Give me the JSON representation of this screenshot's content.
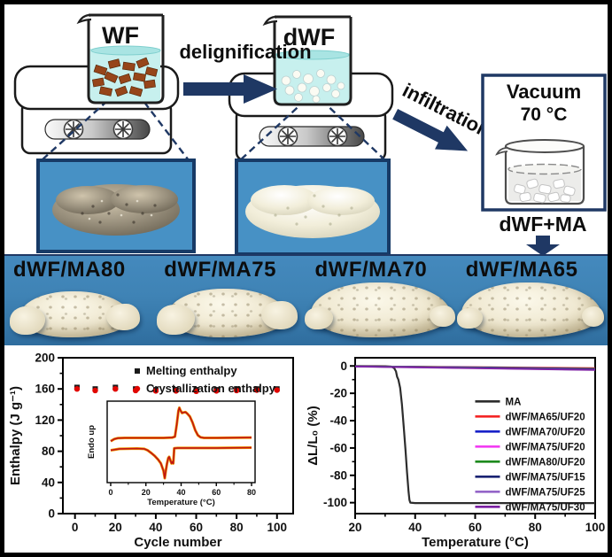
{
  "process": {
    "beaker1_label": "WF",
    "beaker2_label": "dWF",
    "step1_label": "delignification",
    "step2_label": "infiltration",
    "vacuum_line1": "Vacuum",
    "vacuum_line2": "70 °C",
    "mix_label": "dWF+MA"
  },
  "samples": [
    {
      "label": "dWF/MA80"
    },
    {
      "label": "dWF/MA75"
    },
    {
      "label": "dWF/MA70"
    },
    {
      "label": "dWF/MA65"
    }
  ],
  "colors": {
    "accent_navy": "#1f3864",
    "photo_blue": "#4791c5",
    "strip_blue": "#3f83b5",
    "melting_marker": "#1a1a1a",
    "crystallization_marker": "#e10600"
  },
  "chart_data": [
    {
      "type": "scatter",
      "title": "",
      "xlabel": "Cycle number",
      "ylabel": "Enthalpy (J g⁻¹)",
      "xlim": [
        -6,
        108
      ],
      "ylim": [
        0,
        200
      ],
      "xticks": [
        0,
        20,
        40,
        60,
        80,
        100
      ],
      "yticks": [
        0,
        40,
        80,
        120,
        160,
        200
      ],
      "xminor": [
        10,
        30,
        50,
        70,
        90
      ],
      "yminor": [
        20,
        60,
        100,
        140,
        180
      ],
      "legend": {
        "x": 0.3,
        "y": 0.085,
        "dy": 20,
        "swatch": "marker"
      },
      "series": [
        {
          "name": "Melting enthalpy",
          "color": "#1a1a1a",
          "marker": "square",
          "x": [
            1,
            10,
            20,
            30,
            40,
            50,
            60,
            70,
            80,
            90,
            100
          ],
          "y": [
            162,
            160,
            162,
            160,
            159,
            159,
            159,
            159,
            160,
            160,
            160
          ]
        },
        {
          "name": "Crystallization enthalpy",
          "color": "#e10600",
          "marker": "circle",
          "x": [
            1,
            10,
            20,
            30,
            40,
            50,
            60,
            70,
            80,
            90,
            100
          ],
          "y": [
            160,
            158,
            160,
            158,
            157.5,
            157.5,
            157,
            157.5,
            158,
            158.5,
            158.5
          ]
        }
      ],
      "inset": {
        "pos": {
          "x": 90,
          "y": 56,
          "w": 198,
          "h": 126
        },
        "xlabel": "Temperature (°C)",
        "ylabel": "Endo up",
        "xlim": [
          -2,
          82
        ],
        "ylim": [
          -1.45,
          1.3
        ],
        "xticks": [
          0,
          20,
          40,
          60,
          80
        ],
        "yticks": [],
        "xminor": [
          10,
          30,
          50,
          70
        ],
        "bg": "#ffffff",
        "series": [
          {
            "name": "heating-cycles-edge",
            "color": "#f09600",
            "width": 3,
            "nolegend": true,
            "x": [
              0,
              2,
              4,
              8,
              20,
              30,
              35,
              36.5,
              37.5,
              38.5,
              39,
              39.5,
              40.5,
              41.5,
              42.5,
              43.5,
              45,
              46.5,
              48,
              49.5,
              51,
              53,
              60,
              80
            ],
            "y": [
              -0.05,
              0.02,
              0.05,
              0.06,
              0.06,
              0.06,
              0.07,
              0.1,
              0.5,
              0.98,
              1.08,
              1.0,
              0.9,
              0.92,
              0.93,
              0.88,
              0.78,
              0.58,
              0.32,
              0.15,
              0.08,
              0.06,
              0.06,
              0.07
            ]
          },
          {
            "name": "cooling-cycles-edge",
            "color": "#f09600",
            "width": 3,
            "nolegend": true,
            "x": [
              0,
              5,
              15,
              19,
              21,
              23,
              25,
              27,
              28.5,
              30,
              30.7,
              31.3,
              32,
              32.7,
              33.2,
              33.8,
              34.5,
              35,
              35.5,
              35.9,
              36.1,
              38,
              45,
              60,
              80
            ],
            "y": [
              -0.36,
              -0.31,
              -0.3,
              -0.31,
              -0.36,
              -0.45,
              -0.55,
              -0.68,
              -0.8,
              -1.05,
              -1.3,
              -1.05,
              -0.8,
              -0.62,
              -0.58,
              -0.68,
              -0.8,
              -0.75,
              -0.8,
              -0.5,
              -0.29,
              -0.28,
              -0.28,
              -0.28,
              -0.27
            ]
          },
          {
            "name": "heating-cycle",
            "color": "#c01414",
            "width": 1.6,
            "nolegend": true,
            "x": [
              0,
              2,
              4,
              8,
              20,
              30,
              35,
              36.5,
              37.5,
              38.5,
              39,
              39.5,
              40.5,
              41.5,
              42.5,
              43.5,
              45,
              46.5,
              48,
              49.5,
              51,
              53,
              60,
              80
            ],
            "y": [
              -0.05,
              0.02,
              0.05,
              0.06,
              0.06,
              0.06,
              0.07,
              0.1,
              0.5,
              0.98,
              1.08,
              1.0,
              0.9,
              0.92,
              0.93,
              0.88,
              0.78,
              0.58,
              0.32,
              0.15,
              0.08,
              0.06,
              0.06,
              0.07
            ]
          },
          {
            "name": "cooling-cycle",
            "color": "#c01414",
            "width": 1.6,
            "nolegend": true,
            "x": [
              0,
              5,
              15,
              19,
              21,
              23,
              25,
              27,
              28.5,
              30,
              30.7,
              31.3,
              32,
              32.7,
              33.2,
              33.8,
              34.5,
              35,
              35.5,
              35.9,
              36.1,
              38,
              45,
              60,
              80
            ],
            "y": [
              -0.36,
              -0.31,
              -0.3,
              -0.31,
              -0.36,
              -0.45,
              -0.55,
              -0.68,
              -0.8,
              -1.05,
              -1.3,
              -1.05,
              -0.8,
              -0.62,
              -0.58,
              -0.68,
              -0.8,
              -0.75,
              -0.8,
              -0.5,
              -0.29,
              -0.28,
              -0.28,
              -0.28,
              -0.27
            ]
          }
        ]
      }
    },
    {
      "type": "line",
      "title": "",
      "xlabel": "Temperature (°C)",
      "ylabel": "ΔL/L₀ (%)",
      "xlim": [
        20,
        100
      ],
      "ylim": [
        -108,
        6
      ],
      "xticks": [
        20,
        40,
        60,
        80,
        100
      ],
      "yticks": [
        0,
        -20,
        -40,
        -60,
        -80,
        -100
      ],
      "xminor": [
        30,
        50,
        70,
        90
      ],
      "yminor": [
        -10,
        -30,
        -50,
        -70,
        -90
      ],
      "legend": {
        "x": 0.5,
        "y": 0.28,
        "dy": 17,
        "swatch": "line"
      },
      "series": [
        {
          "name": "MA",
          "color": "#2d2d2d",
          "width": 2.2,
          "x": [
            20,
            30,
            32,
            33,
            33.6,
            34,
            34.4,
            35,
            35.6,
            36.2,
            36.8,
            37.3,
            37.8,
            38.1,
            38.4,
            40,
            100
          ],
          "y": [
            -0.1,
            -0.2,
            -0.5,
            -1.5,
            -4,
            -8,
            -10,
            -16,
            -28,
            -45,
            -62,
            -78,
            -92,
            -98,
            -100,
            -100.3,
            -100.3
          ]
        },
        {
          "name": "dWF/MA65/UF20",
          "color": "#f42525",
          "width": 1.8,
          "x": [
            20,
            60,
            100
          ],
          "y": [
            -0.2,
            -0.8,
            -1.6
          ]
        },
        {
          "name": "dWF/MA70/UF20",
          "color": "#1721c8",
          "width": 1.8,
          "x": [
            20,
            60,
            100
          ],
          "y": [
            -0.3,
            -1.0,
            -2.0
          ]
        },
        {
          "name": "dWF/MA75/UF20",
          "color": "#f23cf2",
          "width": 1.8,
          "x": [
            20,
            60,
            100
          ],
          "y": [
            -0.25,
            -1.2,
            -2.6
          ]
        },
        {
          "name": "dWF/MA80/UF20",
          "color": "#1d8a1d",
          "width": 1.8,
          "x": [
            20,
            60,
            100
          ],
          "y": [
            -0.3,
            -1.1,
            -2.2
          ]
        },
        {
          "name": "dWF/MA75/UF15",
          "color": "#192272",
          "width": 1.8,
          "x": [
            20,
            60,
            100
          ],
          "y": [
            -0.35,
            -1.3,
            -2.4
          ]
        },
        {
          "name": "dWF/MA75/UF25",
          "color": "#9465c8",
          "width": 1.8,
          "x": [
            20,
            60,
            100
          ],
          "y": [
            -0.4,
            -1.5,
            -2.8
          ]
        },
        {
          "name": "dWF/MA75/UF30",
          "color": "#7b1fa2",
          "width": 1.8,
          "x": [
            20,
            60,
            100
          ],
          "y": [
            -0.45,
            -1.7,
            -3.0
          ]
        }
      ]
    }
  ]
}
